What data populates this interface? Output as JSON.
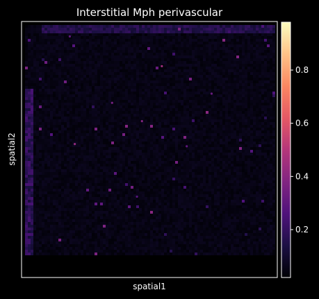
{
  "chart_data": {
    "type": "scatter",
    "title": "Interstitial Mph perivascular",
    "xlabel": "spatial1",
    "ylabel": "spatial2",
    "background": "#000000",
    "axes_color": "#ffffff",
    "colormap": "magma",
    "colorbar": {
      "range": [
        0.02,
        0.98
      ],
      "ticks": [
        0.2,
        0.4,
        0.6,
        0.8
      ],
      "tick_labels": [
        "0.2",
        "0.4",
        "0.6",
        "0.8"
      ],
      "colors": [
        "#000004",
        "#1c1044",
        "#4f127b",
        "#812581",
        "#b5367a",
        "#e55964",
        "#fb8761",
        "#fec287",
        "#fcfdbf"
      ]
    },
    "spots": {
      "grid": "square capture area, dense spot grid",
      "typical_value": 0.03,
      "bright_spots": [
        {
          "x": 0.18,
          "y": 0.95,
          "value": 0.3
        },
        {
          "x": 0.55,
          "y": 0.82,
          "value": 0.45
        },
        {
          "x": 0.35,
          "y": 0.66,
          "value": 0.35
        },
        {
          "x": 0.47,
          "y": 0.58,
          "value": 0.38
        },
        {
          "x": 0.2,
          "y": 0.48,
          "value": 0.42
        },
        {
          "x": 0.65,
          "y": 0.47,
          "value": 0.3
        },
        {
          "x": 0.45,
          "y": 0.25,
          "value": 0.28
        },
        {
          "x": 0.75,
          "y": 0.7,
          "value": 0.32
        }
      ],
      "edge_bands": [
        {
          "name": "top-edge",
          "value": 0.18
        },
        {
          "name": "left-edge",
          "value": 0.22
        }
      ]
    }
  }
}
